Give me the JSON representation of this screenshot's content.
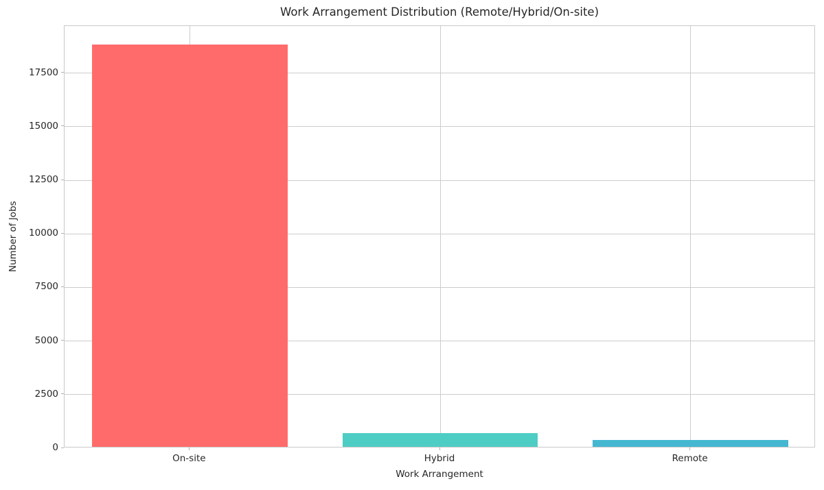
{
  "chart_data": {
    "type": "bar",
    "title": "Work Arrangement Distribution (Remote/Hybrid/On-site)",
    "xlabel": "Work Arrangement",
    "ylabel": "Number of Jobs",
    "categories": [
      "On-site",
      "Hybrid",
      "Remote"
    ],
    "values": [
      18780,
      650,
      310
    ],
    "bar_colors": [
      "#FF6B6B",
      "#4ECDC4",
      "#45B7D1"
    ],
    "yticks": [
      0,
      2500,
      5000,
      7500,
      10000,
      12500,
      15000,
      17500
    ],
    "ylim": [
      0,
      19700
    ],
    "grid": true,
    "legend": false,
    "grid_color": "#cccccc",
    "text_color": "#262626",
    "background_color": "#ffffff"
  }
}
